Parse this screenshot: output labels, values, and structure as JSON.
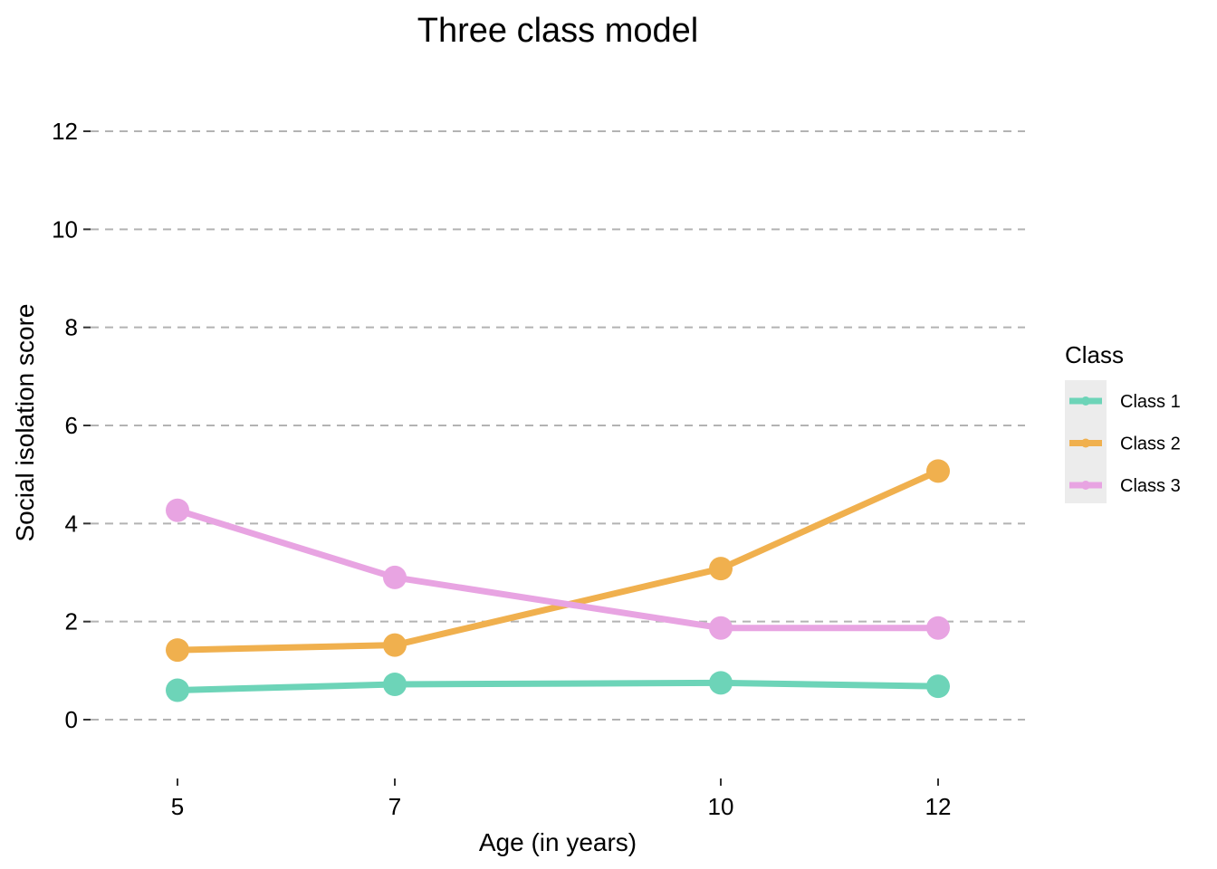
{
  "chart_data": {
    "type": "line",
    "title": "Three class model",
    "xlabel": "Age (in years)",
    "ylabel": "Social isolation score",
    "x": [
      5,
      7,
      10,
      12
    ],
    "x_ticks": [
      "5",
      "7",
      "10",
      "12"
    ],
    "y_ticks": [
      "0",
      "2",
      "4",
      "6",
      "8",
      "10",
      "12"
    ],
    "xlim": [
      4.2,
      12.8
    ],
    "ylim": [
      -1.2,
      13.2
    ],
    "grid": "horizontal dashed",
    "legend": {
      "title": "Class",
      "placement": "right"
    },
    "series": [
      {
        "name": "Class 1",
        "color": "#6dd4b8",
        "values": [
          0.6,
          0.72,
          0.75,
          0.68
        ]
      },
      {
        "name": "Class 2",
        "color": "#f0b04e",
        "values": [
          1.42,
          1.52,
          3.08,
          5.07
        ]
      },
      {
        "name": "Class 3",
        "color": "#e8a4e2",
        "values": [
          4.27,
          2.9,
          1.87,
          1.87
        ]
      }
    ]
  }
}
